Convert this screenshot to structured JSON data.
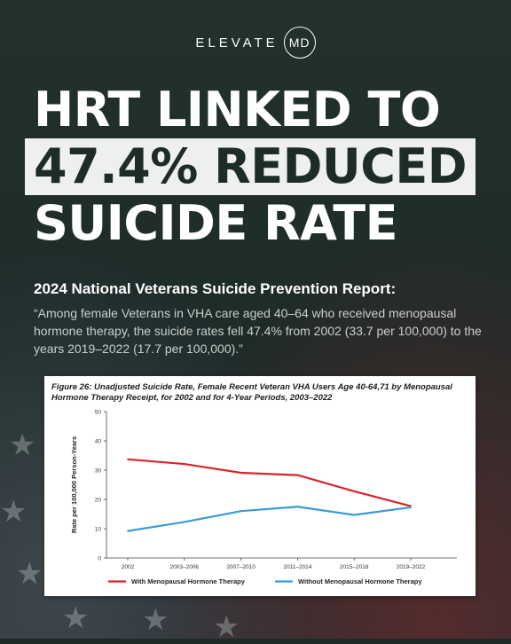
{
  "brand": {
    "name": "ELEVATE",
    "mark": "MD"
  },
  "headline": {
    "line1": "HRT LINKED TO",
    "line2": "47.4% REDUCED",
    "line3": "SUICIDE RATE"
  },
  "subhead": "2024 National Veterans Suicide Prevention Report:",
  "quote": "“Among female Veterans in VHA care aged 40–64 who received menopausal hormone therapy, the suicide rates fell 47.4% from 2002 (33.7 per 100,000) to the years 2019–2022 (17.7 per 100,000).”",
  "chart_data": {
    "type": "line",
    "title": "Figure 26: Unadjusted Suicide Rate, Female Recent Veteran VHA Users Age 40-64,71 by Menopausal Hormone Therapy Receipt, for 2002 and for 4-Year Periods, 2003–2022",
    "xlabel": "",
    "ylabel": "Rate per 100,000 Person-Years",
    "categories": [
      "2002",
      "2003–2006",
      "2007–2010",
      "2011–2014",
      "2015–2018",
      "2019–2022"
    ],
    "yticks": [
      "0",
      "10",
      "20",
      "30",
      "40",
      "50"
    ],
    "ylim": [
      0,
      50
    ],
    "grid": false,
    "legend_position": "bottom",
    "series": [
      {
        "name": "With Menopausal Hormone Therapy",
        "color": "#d7242f",
        "values": [
          33.7,
          32.1,
          29.1,
          28.3,
          22.8,
          17.7
        ]
      },
      {
        "name": "Without Menopausal Hormone Therapy",
        "color": "#3a9bd5",
        "values": [
          9.2,
          12.3,
          16.0,
          17.5,
          14.7,
          17.3
        ]
      }
    ]
  }
}
